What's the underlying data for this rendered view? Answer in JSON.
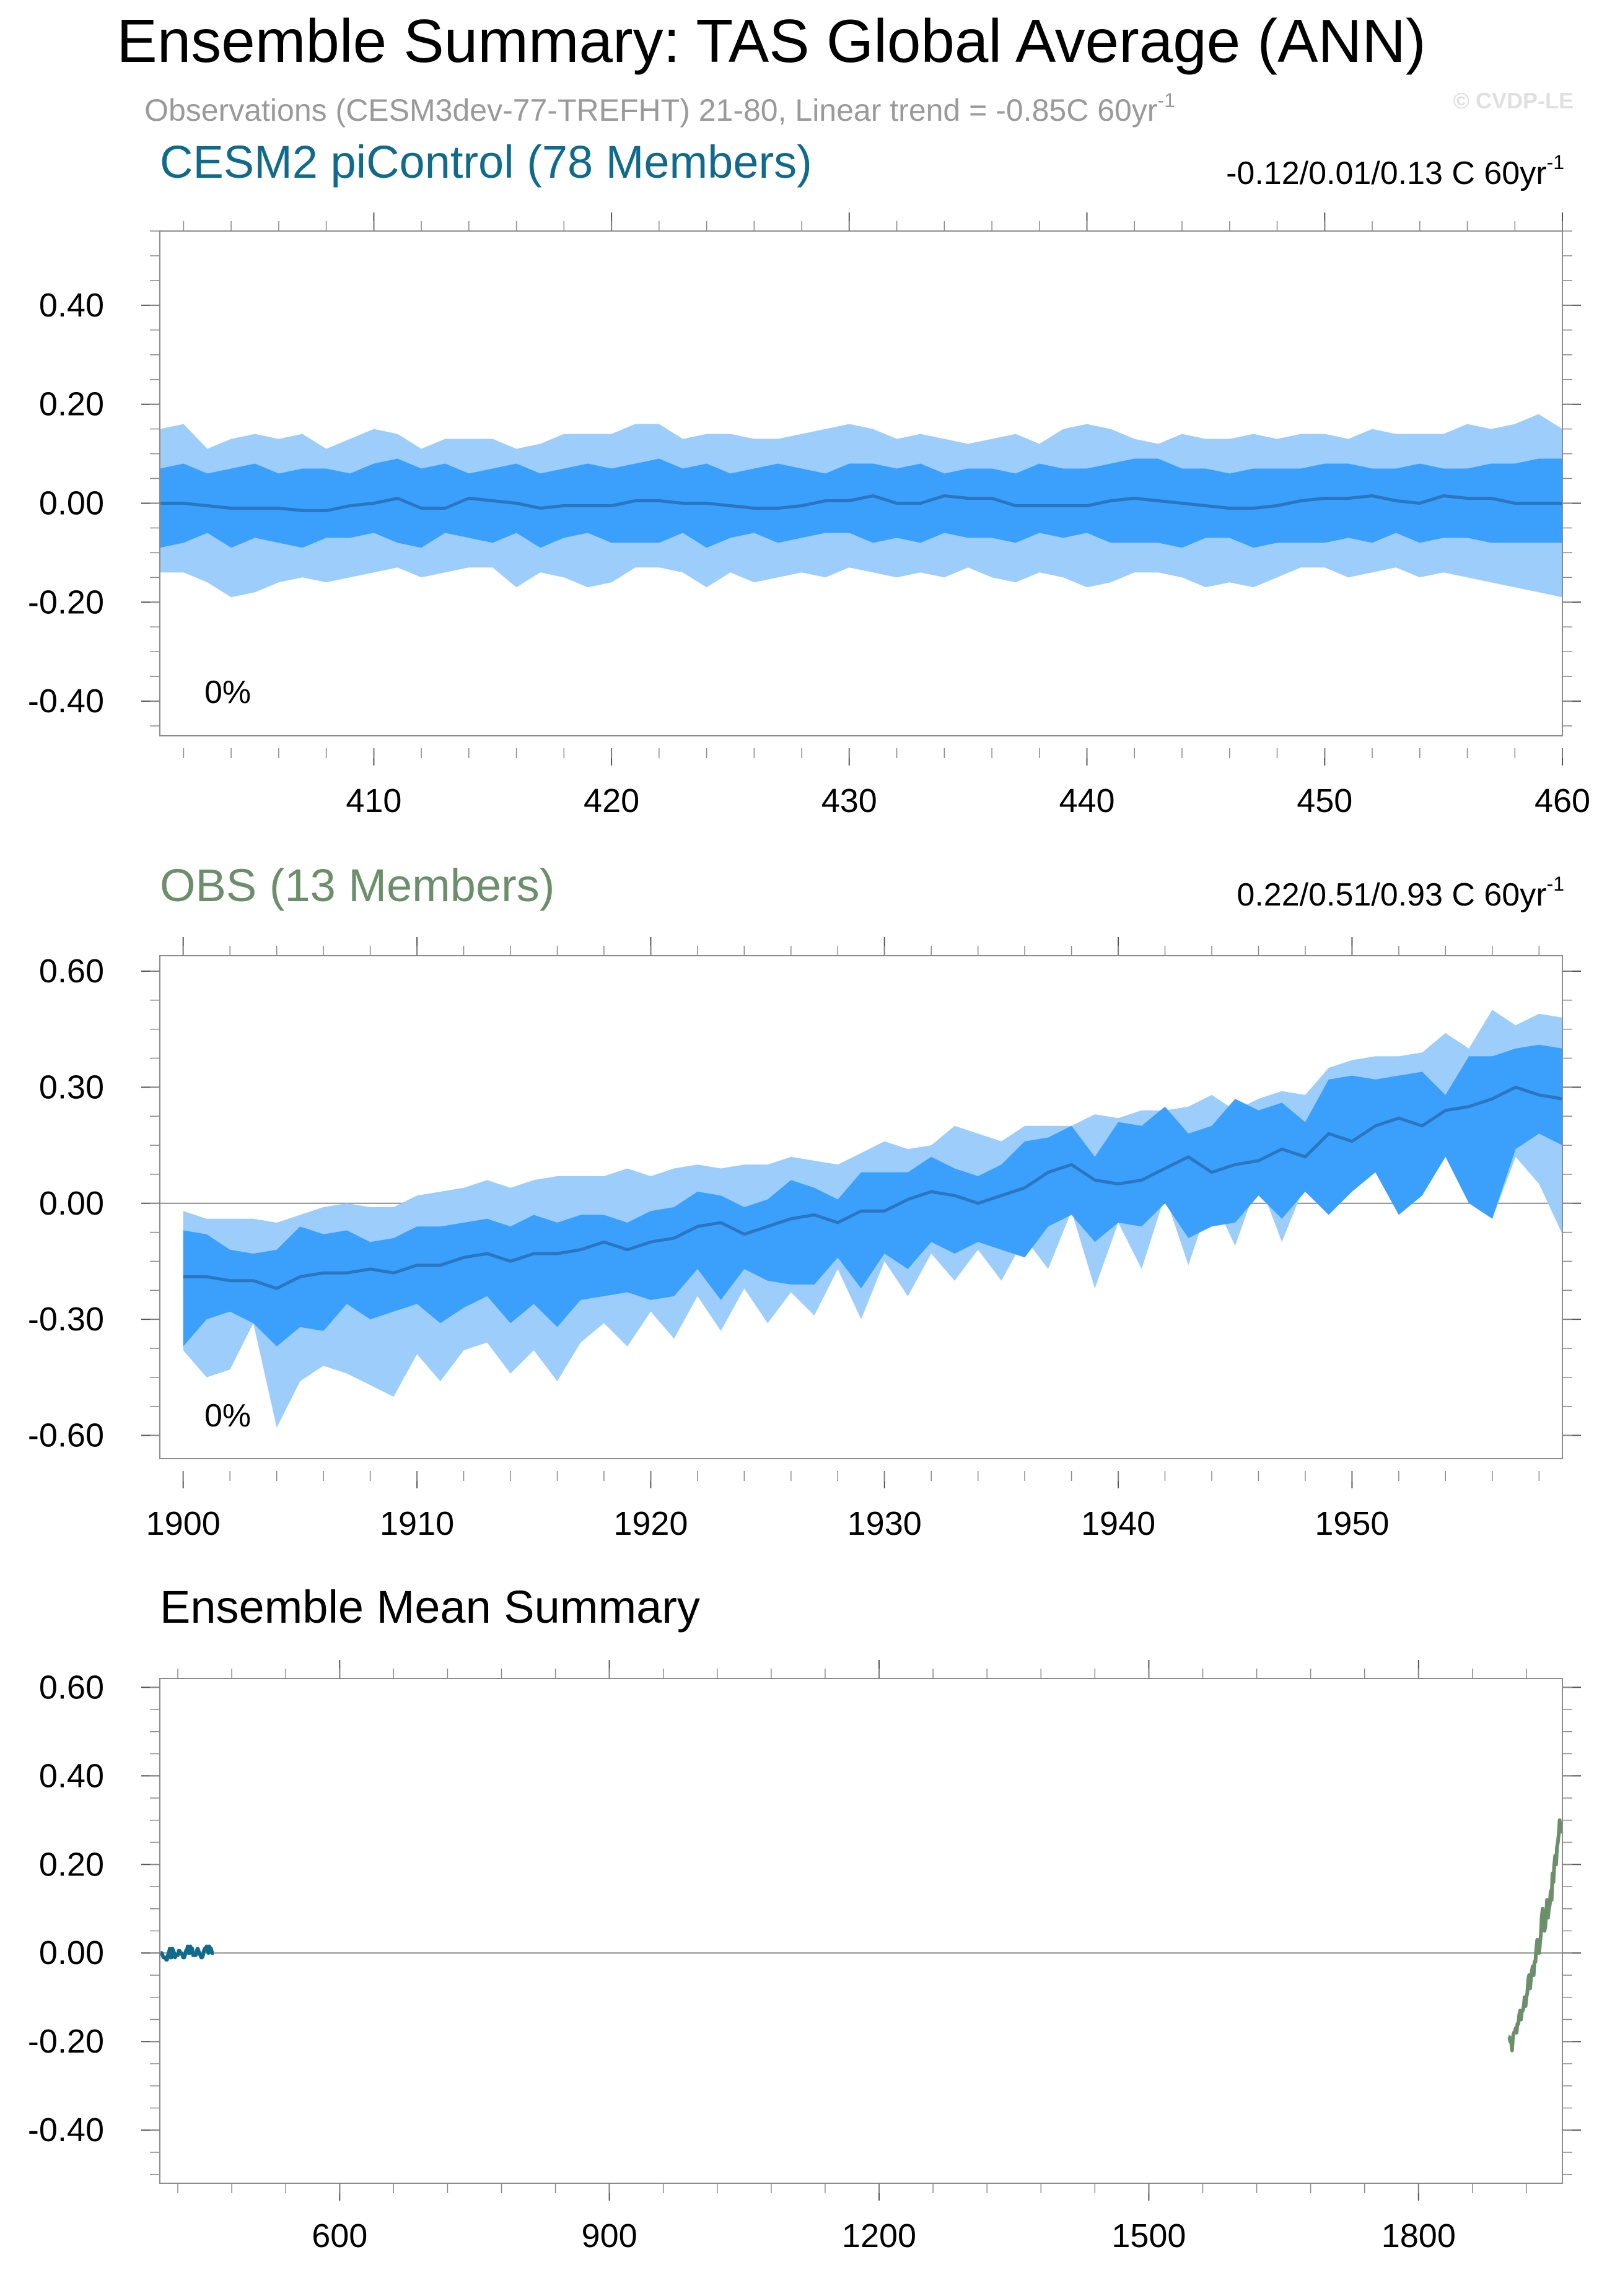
{
  "page": {
    "title": "Ensemble Summary: TAS Global Average (ANN)",
    "subtitle_prefix": "Observations (CESM3dev-77-TREFHT) 21-80, Linear trend = -0.85C 60yr",
    "subtitle_sup": "-1",
    "watermark": "© CVDP-LE"
  },
  "chart_data": [
    {
      "type": "area",
      "title": "CESM2 piControl (78 Members)",
      "title_color": "#0f6a8c",
      "trend_text": "-0.12/0.01/0.13 C 60yr",
      "trend_sup": "-1",
      "pct_label": "0%",
      "xlim": [
        401,
        460
      ],
      "ylim": [
        -0.47,
        0.55
      ],
      "yticks": [
        0.4,
        0.2,
        0.0,
        -0.2,
        -0.4
      ],
      "yticklabels": [
        "0.40",
        "0.20",
        "0.00",
        "-0.20",
        "-0.40"
      ],
      "xticks": [
        410,
        420,
        430,
        440,
        450,
        460
      ],
      "xticklabels": [
        "410",
        "420",
        "430",
        "440",
        "450",
        "460"
      ],
      "colors": {
        "outer": "#9dcdfa",
        "inner": "#3aa0fb",
        "line": "#2a76c0"
      },
      "x": [
        401,
        402,
        403,
        404,
        405,
        406,
        407,
        408,
        409,
        410,
        411,
        412,
        413,
        414,
        415,
        416,
        417,
        418,
        419,
        420,
        421,
        422,
        423,
        424,
        425,
        426,
        427,
        428,
        429,
        430,
        431,
        432,
        433,
        434,
        435,
        436,
        437,
        438,
        439,
        440,
        441,
        442,
        443,
        444,
        445,
        446,
        447,
        448,
        449,
        450,
        451,
        452,
        453,
        454,
        455,
        456,
        457,
        458,
        459,
        460
      ],
      "p_min": [
        -0.14,
        -0.14,
        -0.16,
        -0.19,
        -0.18,
        -0.16,
        -0.15,
        -0.16,
        -0.15,
        -0.14,
        -0.13,
        -0.15,
        -0.14,
        -0.13,
        -0.13,
        -0.17,
        -0.14,
        -0.15,
        -0.17,
        -0.16,
        -0.13,
        -0.13,
        -0.14,
        -0.17,
        -0.14,
        -0.16,
        -0.15,
        -0.14,
        -0.15,
        -0.13,
        -0.14,
        -0.15,
        -0.14,
        -0.15,
        -0.13,
        -0.15,
        -0.16,
        -0.14,
        -0.15,
        -0.17,
        -0.16,
        -0.14,
        -0.14,
        -0.15,
        -0.17,
        -0.16,
        -0.17,
        -0.15,
        -0.13,
        -0.13,
        -0.15,
        -0.14,
        -0.13,
        -0.15,
        -0.14,
        -0.15,
        -0.16,
        -0.17,
        -0.18,
        -0.19
      ],
      "p25": [
        -0.09,
        -0.08,
        -0.06,
        -0.09,
        -0.07,
        -0.08,
        -0.09,
        -0.07,
        -0.07,
        -0.06,
        -0.08,
        -0.09,
        -0.06,
        -0.07,
        -0.08,
        -0.06,
        -0.09,
        -0.07,
        -0.06,
        -0.08,
        -0.08,
        -0.08,
        -0.06,
        -0.09,
        -0.07,
        -0.06,
        -0.08,
        -0.07,
        -0.06,
        -0.06,
        -0.08,
        -0.07,
        -0.08,
        -0.06,
        -0.07,
        -0.07,
        -0.08,
        -0.06,
        -0.07,
        -0.06,
        -0.08,
        -0.08,
        -0.08,
        -0.09,
        -0.07,
        -0.07,
        -0.09,
        -0.08,
        -0.08,
        -0.08,
        -0.07,
        -0.08,
        -0.06,
        -0.08,
        -0.07,
        -0.07,
        -0.08,
        -0.08,
        -0.08,
        -0.08
      ],
      "mean": [
        0.0,
        0.0,
        -0.005,
        -0.01,
        -0.01,
        -0.01,
        -0.015,
        -0.015,
        -0.005,
        0.0,
        0.01,
        -0.01,
        -0.01,
        0.01,
        0.005,
        0.0,
        -0.01,
        -0.005,
        -0.005,
        -0.005,
        0.005,
        0.005,
        0.0,
        0.0,
        -0.005,
        -0.01,
        -0.01,
        -0.005,
        0.005,
        0.005,
        0.015,
        0.0,
        0.0,
        0.015,
        0.01,
        0.01,
        -0.005,
        -0.005,
        -0.005,
        -0.005,
        0.005,
        0.01,
        0.005,
        0.0,
        -0.005,
        -0.01,
        -0.01,
        -0.005,
        0.005,
        0.01,
        0.01,
        0.015,
        0.005,
        0.0,
        0.015,
        0.01,
        0.01,
        0.0,
        0.0,
        0.0
      ],
      "p75": [
        0.07,
        0.08,
        0.06,
        0.07,
        0.08,
        0.06,
        0.07,
        0.07,
        0.06,
        0.08,
        0.09,
        0.07,
        0.08,
        0.06,
        0.07,
        0.08,
        0.06,
        0.07,
        0.08,
        0.07,
        0.08,
        0.09,
        0.07,
        0.08,
        0.06,
        0.07,
        0.08,
        0.07,
        0.06,
        0.08,
        0.08,
        0.07,
        0.08,
        0.06,
        0.07,
        0.07,
        0.06,
        0.08,
        0.07,
        0.07,
        0.08,
        0.09,
        0.09,
        0.07,
        0.07,
        0.06,
        0.07,
        0.07,
        0.07,
        0.08,
        0.08,
        0.07,
        0.07,
        0.08,
        0.07,
        0.07,
        0.08,
        0.08,
        0.09,
        0.09
      ],
      "p_max": [
        0.15,
        0.16,
        0.11,
        0.13,
        0.14,
        0.13,
        0.14,
        0.11,
        0.13,
        0.15,
        0.14,
        0.11,
        0.13,
        0.13,
        0.13,
        0.11,
        0.12,
        0.14,
        0.14,
        0.14,
        0.16,
        0.16,
        0.13,
        0.14,
        0.14,
        0.13,
        0.13,
        0.14,
        0.15,
        0.16,
        0.15,
        0.13,
        0.14,
        0.13,
        0.12,
        0.13,
        0.14,
        0.12,
        0.15,
        0.16,
        0.15,
        0.13,
        0.12,
        0.14,
        0.13,
        0.13,
        0.14,
        0.13,
        0.14,
        0.14,
        0.13,
        0.15,
        0.14,
        0.14,
        0.14,
        0.16,
        0.15,
        0.16,
        0.18,
        0.15
      ]
    },
    {
      "type": "area",
      "title": "OBS (13 Members)",
      "title_color": "#6b8e6b",
      "trend_text": "0.22/0.51/0.93 C 60yr",
      "trend_sup": "-1",
      "pct_label": "0%",
      "xlim": [
        1899,
        1959
      ],
      "ylim": [
        -0.66,
        0.64
      ],
      "yticks": [
        0.6,
        0.3,
        0.0,
        -0.3,
        -0.6
      ],
      "yticklabels": [
        "0.60",
        "0.30",
        "0.00",
        "-0.30",
        "-0.60"
      ],
      "xticks": [
        1900,
        1910,
        1920,
        1930,
        1940,
        1950
      ],
      "xticklabels": [
        "1900",
        "1910",
        "1920",
        "1930",
        "1940",
        "1950"
      ],
      "colors": {
        "outer": "#9dcdfa",
        "inner": "#3aa0fb",
        "line": "#2a76c0"
      },
      "x": [
        1900,
        1901,
        1902,
        1903,
        1904,
        1905,
        1906,
        1907,
        1908,
        1909,
        1910,
        1911,
        1912,
        1913,
        1914,
        1915,
        1916,
        1917,
        1918,
        1919,
        1920,
        1921,
        1922,
        1923,
        1924,
        1925,
        1926,
        1927,
        1928,
        1929,
        1930,
        1931,
        1932,
        1933,
        1934,
        1935,
        1936,
        1937,
        1938,
        1939,
        1940,
        1941,
        1942,
        1943,
        1944,
        1945,
        1946,
        1947,
        1948,
        1949,
        1950,
        1951,
        1952,
        1953,
        1954,
        1955,
        1956,
        1957,
        1958,
        1959
      ],
      "p_min": [
        -0.38,
        -0.45,
        -0.43,
        -0.31,
        -0.58,
        -0.46,
        -0.42,
        -0.44,
        -0.47,
        -0.5,
        -0.39,
        -0.46,
        -0.38,
        -0.36,
        -0.44,
        -0.38,
        -0.46,
        -0.36,
        -0.31,
        -0.37,
        -0.28,
        -0.35,
        -0.24,
        -0.33,
        -0.22,
        -0.31,
        -0.23,
        -0.29,
        -0.17,
        -0.3,
        -0.15,
        -0.24,
        -0.13,
        -0.2,
        -0.12,
        -0.2,
        -0.09,
        -0.17,
        -0.02,
        -0.22,
        -0.05,
        -0.17,
        0.02,
        -0.16,
        0.02,
        -0.11,
        0.06,
        -0.1,
        0.05,
        -0.02,
        0.04,
        0.09,
        -0.03,
        0.03,
        0.16,
        0.07,
        -0.04,
        0.12,
        0.05,
        -0.08
      ],
      "p25": [
        -0.37,
        -0.3,
        -0.28,
        -0.31,
        -0.37,
        -0.32,
        -0.33,
        -0.26,
        -0.3,
        -0.28,
        -0.26,
        -0.31,
        -0.27,
        -0.24,
        -0.31,
        -0.26,
        -0.32,
        -0.25,
        -0.24,
        -0.23,
        -0.25,
        -0.24,
        -0.17,
        -0.25,
        -0.17,
        -0.2,
        -0.21,
        -0.21,
        -0.14,
        -0.22,
        -0.13,
        -0.17,
        -0.1,
        -0.13,
        -0.1,
        -0.12,
        -0.14,
        -0.06,
        -0.03,
        -0.1,
        -0.05,
        -0.06,
        0.0,
        -0.09,
        -0.06,
        -0.05,
        0.02,
        -0.04,
        0.03,
        -0.03,
        0.03,
        0.08,
        -0.03,
        0.02,
        0.12,
        0.0,
        -0.04,
        0.14,
        0.18,
        0.15
      ],
      "mean": [
        -0.19,
        -0.19,
        -0.2,
        -0.2,
        -0.22,
        -0.19,
        -0.18,
        -0.18,
        -0.17,
        -0.18,
        -0.16,
        -0.16,
        -0.14,
        -0.13,
        -0.15,
        -0.13,
        -0.13,
        -0.12,
        -0.1,
        -0.12,
        -0.1,
        -0.09,
        -0.06,
        -0.05,
        -0.08,
        -0.06,
        -0.04,
        -0.03,
        -0.05,
        -0.02,
        -0.02,
        0.01,
        0.03,
        0.02,
        0.0,
        0.02,
        0.04,
        0.08,
        0.1,
        0.06,
        0.05,
        0.06,
        0.09,
        0.12,
        0.08,
        0.1,
        0.11,
        0.14,
        0.12,
        0.18,
        0.16,
        0.2,
        0.22,
        0.2,
        0.24,
        0.25,
        0.27,
        0.3,
        0.28,
        0.27
      ],
      "p75": [
        -0.07,
        -0.08,
        -0.12,
        -0.13,
        -0.12,
        -0.06,
        -0.08,
        -0.07,
        -0.1,
        -0.09,
        -0.06,
        -0.06,
        -0.05,
        -0.04,
        -0.06,
        -0.03,
        -0.05,
        -0.03,
        -0.03,
        -0.05,
        -0.02,
        -0.01,
        0.03,
        0.02,
        -0.01,
        0.01,
        0.06,
        0.04,
        0.01,
        0.08,
        0.08,
        0.08,
        0.12,
        0.09,
        0.07,
        0.1,
        0.16,
        0.17,
        0.2,
        0.12,
        0.21,
        0.2,
        0.25,
        0.18,
        0.2,
        0.27,
        0.24,
        0.26,
        0.21,
        0.32,
        0.33,
        0.32,
        0.33,
        0.34,
        0.28,
        0.38,
        0.38,
        0.4,
        0.41,
        0.4
      ],
      "p_max": [
        -0.02,
        -0.04,
        -0.04,
        -0.04,
        -0.05,
        -0.03,
        -0.01,
        0.0,
        -0.01,
        -0.01,
        0.02,
        0.03,
        0.04,
        0.06,
        0.04,
        0.06,
        0.07,
        0.07,
        0.07,
        0.09,
        0.07,
        0.09,
        0.1,
        0.09,
        0.1,
        0.1,
        0.12,
        0.11,
        0.1,
        0.13,
        0.16,
        0.14,
        0.15,
        0.2,
        0.18,
        0.16,
        0.2,
        0.2,
        0.2,
        0.23,
        0.22,
        0.24,
        0.24,
        0.25,
        0.28,
        0.24,
        0.27,
        0.29,
        0.28,
        0.35,
        0.37,
        0.38,
        0.38,
        0.39,
        0.44,
        0.4,
        0.5,
        0.46,
        0.49,
        0.48
      ]
    },
    {
      "type": "line",
      "title": "Ensemble Mean Summary",
      "xlim": [
        400,
        1960
      ],
      "ylim": [
        -0.52,
        0.62
      ],
      "yticks": [
        0.6,
        0.4,
        0.2,
        0.0,
        -0.2,
        -0.4
      ],
      "yticklabels": [
        "0.60",
        "0.40",
        "0.20",
        "0.00",
        "-0.20",
        "-0.40"
      ],
      "xticks": [
        600,
        900,
        1200,
        1500,
        1800
      ],
      "xticklabels": [
        "600",
        "900",
        "1200",
        "1500",
        "1800"
      ],
      "series": [
        {
          "color": "#0f6a8c",
          "source": 0
        },
        {
          "color": "#6b8e6b",
          "source": 1
        }
      ]
    }
  ]
}
